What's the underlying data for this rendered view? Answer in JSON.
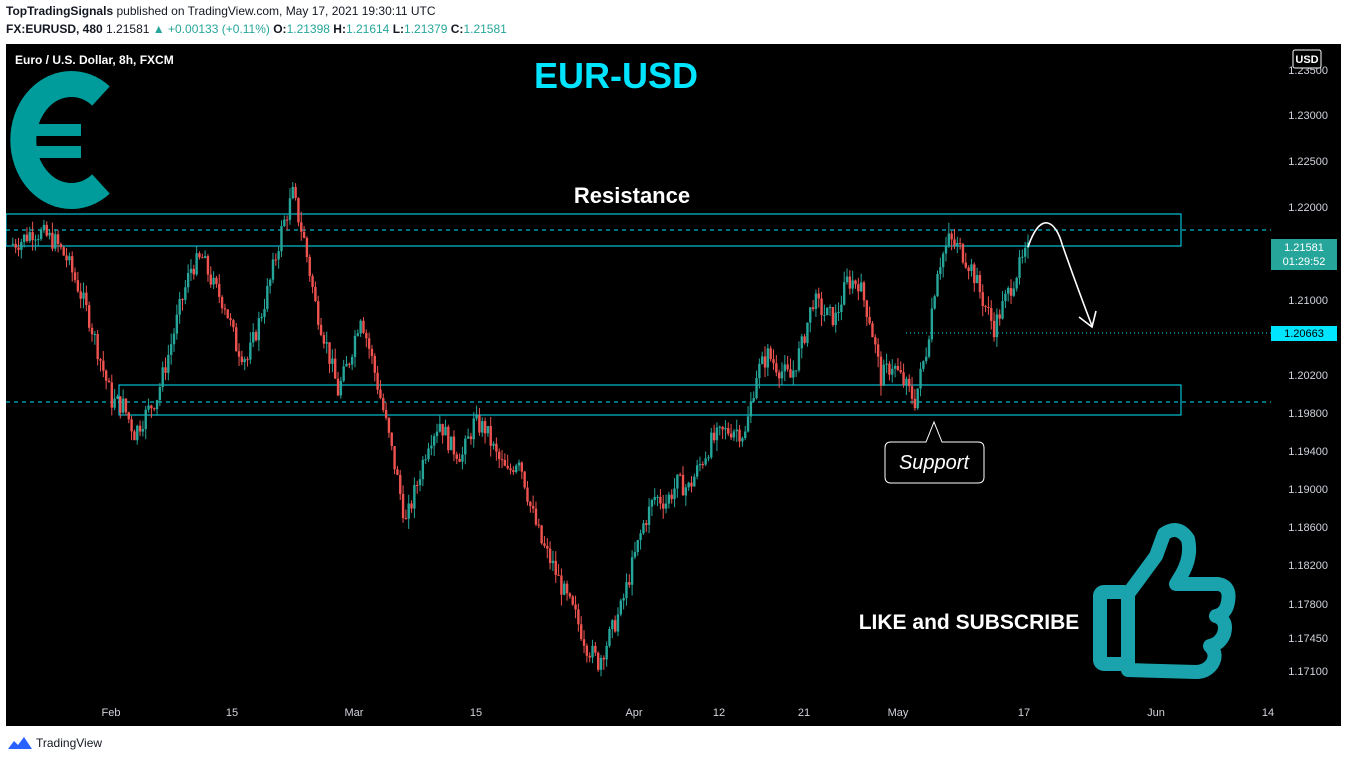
{
  "header": {
    "publisher": "TopTradingSignals",
    "published_text": "published on TradingView.com, May 17, 2021 19:30:11 UTC",
    "symbol": "FX:EURUSD, 480",
    "last": "1.21581",
    "change": "+0.00133 (+0.11%)",
    "open_label": "O:",
    "open": "1.21398",
    "high_label": "H:",
    "high": "1.21614",
    "low_label": "L:",
    "low": "1.21379",
    "close_label": "C:",
    "close": "1.21581"
  },
  "chart": {
    "instrument": "Euro / U.S. Dollar, 8h, FXCM",
    "title": "EUR-USD",
    "currency_badge": "USD",
    "resistance_label": "Resistance",
    "support_label": "Support",
    "cta_text": "LIKE and SUBSCRIBE",
    "current_price_tag": "1.21581",
    "countdown_tag": "01:29:52",
    "target_price_tag": "1.20663",
    "y_ticks": [
      "1.23500",
      "1.23000",
      "1.22500",
      "1.22000",
      "1.21000",
      "1.20200",
      "1.19800",
      "1.19400",
      "1.19000",
      "1.18600",
      "1.18200",
      "1.17800",
      "1.17450",
      "1.17100"
    ],
    "x_ticks": [
      "Feb",
      "15",
      "Mar",
      "15",
      "Apr",
      "12",
      "21",
      "May",
      "17",
      "Jun",
      "14"
    ],
    "colors": {
      "up": "#26a69a",
      "down": "#ef5350",
      "accent": "#00e5ff",
      "euro": "#009c9c",
      "thumb": "#1aa3ad",
      "price_tag": "#26a69a",
      "target_tag": "#00e5ff"
    }
  },
  "chart_data": {
    "type": "candlestick",
    "series": [
      {
        "name": "EUR/USD 8h",
        "values": [
          1.2165,
          1.217,
          1.218,
          1.2176,
          1.2168,
          1.215,
          1.212,
          1.2085,
          1.204,
          1.1995,
          1.199,
          1.196,
          1.198,
          1.2,
          1.2045,
          1.2095,
          1.214,
          1.215,
          1.212,
          1.21,
          1.2055,
          1.204,
          1.208,
          1.2125,
          1.218,
          1.222,
          1.217,
          1.21,
          1.2055,
          1.2005,
          1.204,
          1.209,
          1.204,
          1.1985,
          1.1925,
          1.1862,
          1.1905,
          1.1952,
          1.1972,
          1.1945,
          1.1935,
          1.197,
          1.1965,
          1.1935,
          1.1915,
          1.1935,
          1.188,
          1.184,
          1.1815,
          1.1785,
          1.176,
          1.1728,
          1.171,
          1.1738,
          1.1768,
          1.1815,
          1.186,
          1.189,
          1.1885,
          1.1905,
          1.19,
          1.1925,
          1.195,
          1.196,
          1.1965,
          1.1958,
          1.2025,
          1.2045,
          1.203,
          1.202,
          1.2055,
          1.2105,
          1.209,
          1.2085,
          1.2125,
          1.2125,
          1.2085,
          1.202,
          1.2035,
          1.2015,
          1.1995,
          1.205,
          1.214,
          1.217,
          1.216,
          1.214,
          1.2105,
          1.2075,
          1.2105,
          1.2135,
          1.2158
        ]
      }
    ],
    "ylim": [
      1.1695,
      1.2362
    ]
  }
}
